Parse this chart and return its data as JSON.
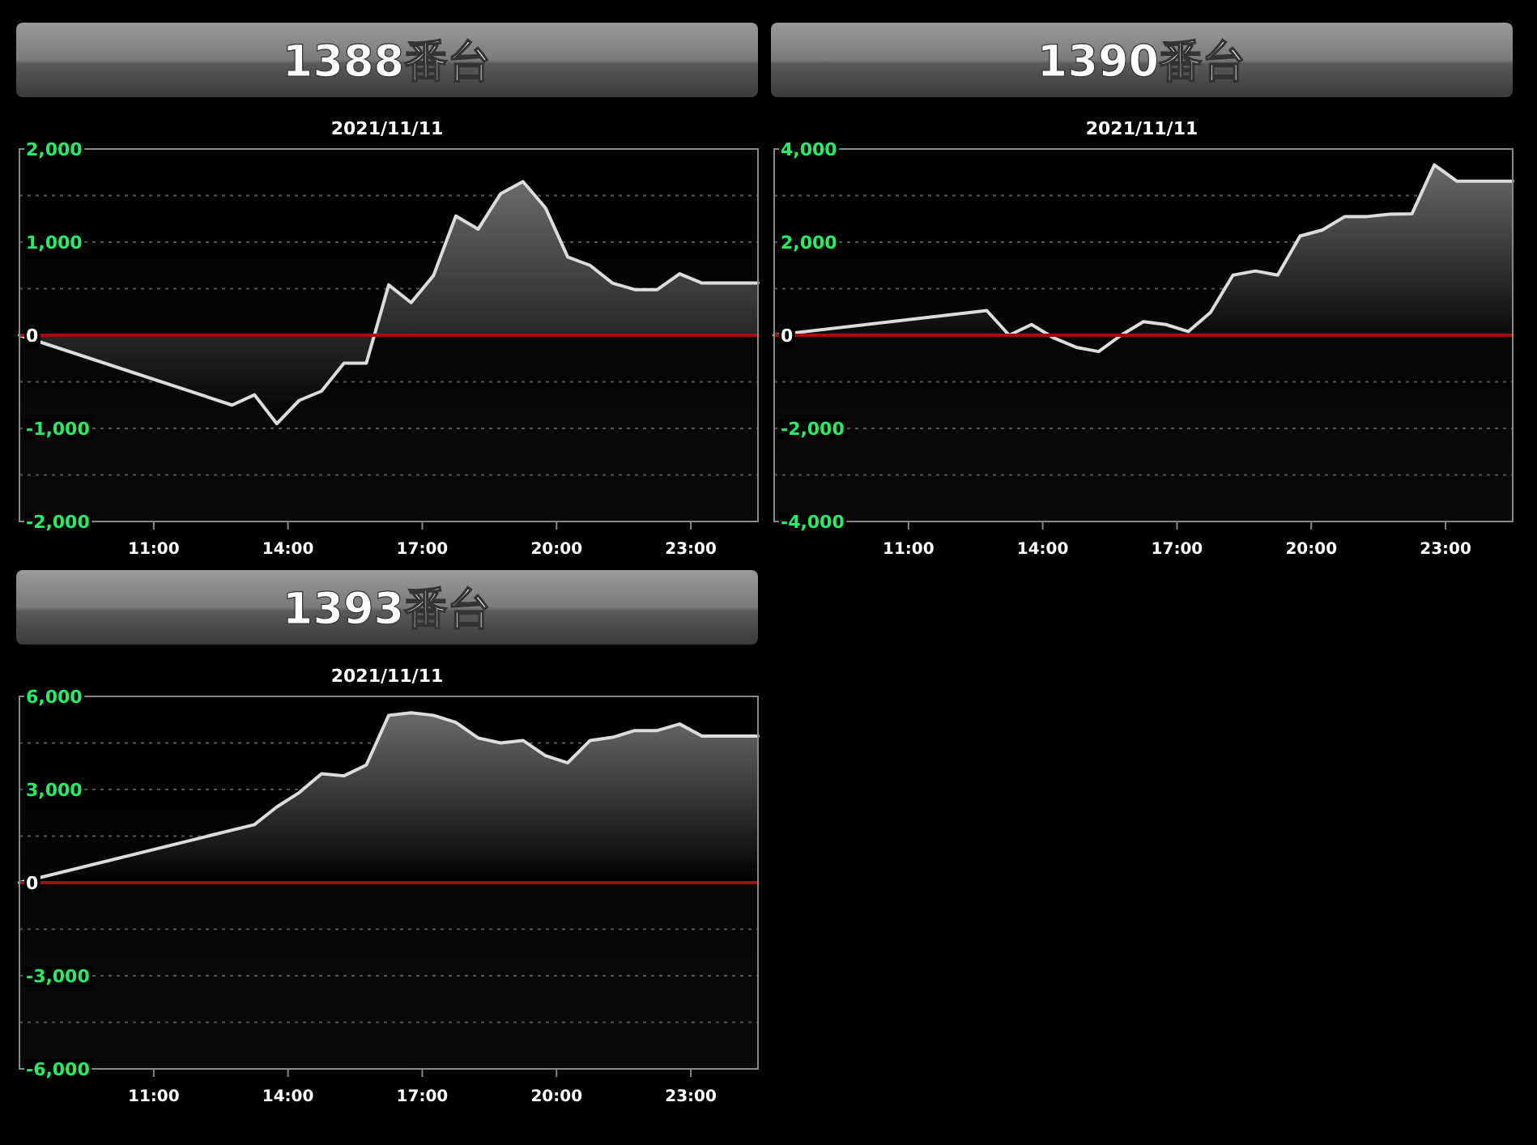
{
  "chart_data": [
    {
      "type": "area",
      "title": "1388番台",
      "subtitle": "2021/11/11",
      "color": "#dcdcdc",
      "grid": "y",
      "x": [
        8,
        12.75,
        13.25,
        13.75,
        14.25,
        14.75,
        15.25,
        15.75,
        16.25,
        16.75,
        17.25,
        17.75,
        18.25,
        18.75,
        19.25,
        19.75,
        20.25,
        20.75,
        21.25,
        21.75,
        22.25,
        22.75,
        23.25,
        24.5
      ],
      "values": [
        0,
        -750,
        -640,
        -950,
        -700,
        -600,
        -300,
        -300,
        540,
        350,
        640,
        1280,
        1140,
        1520,
        1650,
        1370,
        840,
        750,
        560,
        490,
        490,
        660,
        560,
        560
      ],
      "xlim": [
        8,
        24.5
      ],
      "xticks": [
        {
          "value": 11,
          "label": "11:00"
        },
        {
          "value": 14,
          "label": "14:00"
        },
        {
          "value": 17,
          "label": "17:00"
        },
        {
          "value": 20,
          "label": "20:00"
        },
        {
          "value": 23,
          "label": "23:00"
        }
      ],
      "ylim": [
        -2000,
        2000
      ],
      "yticks": [
        {
          "value": -2000,
          "label": "-2,000"
        },
        {
          "value": -1500,
          "label": null
        },
        {
          "value": -1000,
          "label": "-1,000"
        },
        {
          "value": -500,
          "label": null
        },
        {
          "value": 0,
          "label": "0"
        },
        {
          "value": 500,
          "label": null
        },
        {
          "value": 1000,
          "label": "1,000"
        },
        {
          "value": 1500,
          "label": null
        },
        {
          "value": 2000,
          "label": "2,000"
        }
      ],
      "ref_lines": [
        {
          "axis": "y",
          "value": 0,
          "color": "#a01010"
        }
      ]
    },
    {
      "type": "area",
      "title": "1390番台",
      "subtitle": "2021/11/11",
      "color": "#dcdcdc",
      "grid": "y",
      "x": [
        8,
        12.75,
        13.25,
        13.75,
        14.25,
        14.75,
        15.25,
        15.75,
        16.25,
        16.75,
        17.25,
        17.75,
        18.25,
        18.75,
        19.25,
        19.75,
        20.25,
        20.75,
        21.25,
        21.75,
        22.25,
        22.75,
        23.25,
        24.5
      ],
      "values": [
        0,
        530,
        0,
        230,
        -60,
        -260,
        -350,
        0,
        290,
        230,
        80,
        490,
        1290,
        1380,
        1290,
        2130,
        2260,
        2550,
        2550,
        2600,
        2610,
        3660,
        3310,
        3310
      ],
      "xlim": [
        8,
        24.5
      ],
      "xticks": [
        {
          "value": 11,
          "label": "11:00"
        },
        {
          "value": 14,
          "label": "14:00"
        },
        {
          "value": 17,
          "label": "17:00"
        },
        {
          "value": 20,
          "label": "20:00"
        },
        {
          "value": 23,
          "label": "23:00"
        }
      ],
      "ylim": [
        -4000,
        4000
      ],
      "yticks": [
        {
          "value": -4000,
          "label": "-4,000"
        },
        {
          "value": -3000,
          "label": null
        },
        {
          "value": -2000,
          "label": "-2,000"
        },
        {
          "value": -1000,
          "label": null
        },
        {
          "value": 0,
          "label": "0"
        },
        {
          "value": 1000,
          "label": null
        },
        {
          "value": 2000,
          "label": "2,000"
        },
        {
          "value": 3000,
          "label": null
        },
        {
          "value": 4000,
          "label": "4,000"
        }
      ],
      "ref_lines": [
        {
          "axis": "y",
          "value": 0,
          "color": "#a01010"
        }
      ]
    },
    {
      "type": "area",
      "title": "1393番台",
      "subtitle": "2021/11/11",
      "color": "#dcdcdc",
      "grid": "y",
      "x": [
        8,
        13.25,
        13.75,
        14.25,
        14.75,
        15.25,
        15.75,
        16.25,
        16.75,
        17.25,
        17.75,
        18.25,
        18.75,
        19.25,
        19.75,
        20.25,
        20.75,
        21.25,
        21.75,
        22.25,
        22.75,
        23.25,
        24.5
      ],
      "values": [
        0,
        1870,
        2440,
        2900,
        3510,
        3440,
        3790,
        5390,
        5470,
        5390,
        5160,
        4660,
        4500,
        4580,
        4090,
        3860,
        4580,
        4680,
        4900,
        4900,
        5110,
        4720,
        4720
      ],
      "xlim": [
        8,
        24.5
      ],
      "xticks": [
        {
          "value": 11,
          "label": "11:00"
        },
        {
          "value": 14,
          "label": "14:00"
        },
        {
          "value": 17,
          "label": "17:00"
        },
        {
          "value": 20,
          "label": "20:00"
        },
        {
          "value": 23,
          "label": "23:00"
        }
      ],
      "ylim": [
        -6000,
        6000
      ],
      "yticks": [
        {
          "value": -6000,
          "label": "-6,000"
        },
        {
          "value": -4500,
          "label": null
        },
        {
          "value": -3000,
          "label": "-3,000"
        },
        {
          "value": -1500,
          "label": null
        },
        {
          "value": 0,
          "label": "0"
        },
        {
          "value": 1500,
          "label": null
        },
        {
          "value": 3000,
          "label": "3,000"
        },
        {
          "value": 4500,
          "label": null
        },
        {
          "value": 6000,
          "label": "6,000"
        }
      ],
      "ref_lines": [
        {
          "axis": "y",
          "value": 0,
          "color": "#a01010"
        }
      ]
    }
  ]
}
